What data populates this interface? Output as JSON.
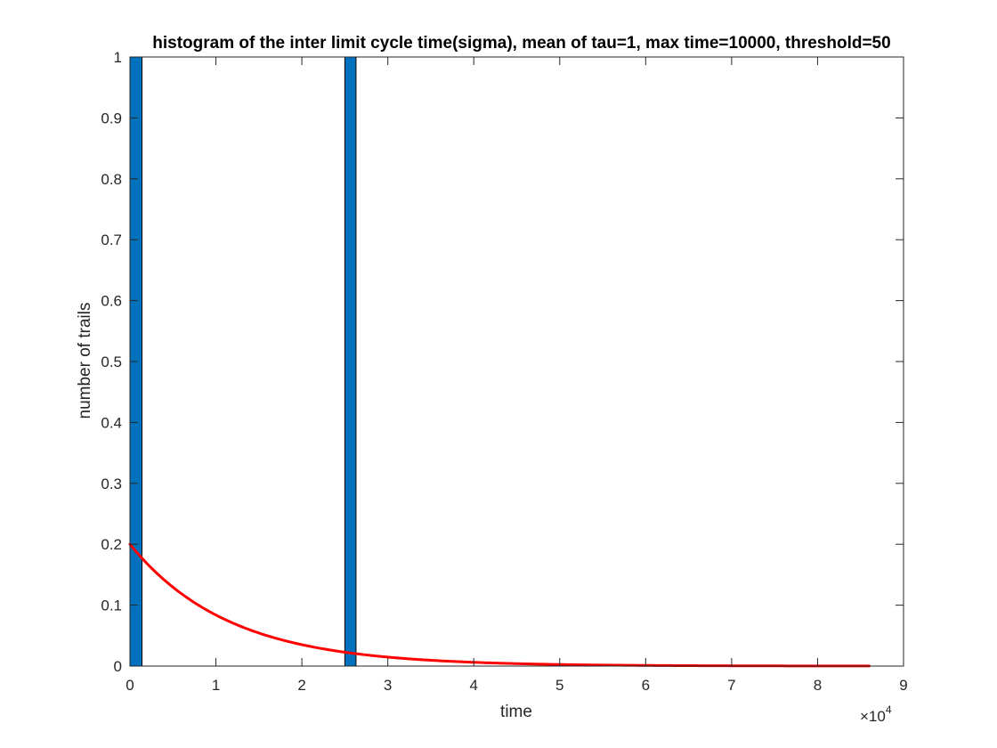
{
  "chart_data": {
    "type": "bar",
    "title": "histogram of the inter limit cycle time(sigma), mean of tau=1, max time=10000, threshold=50",
    "xlabel": "time",
    "ylabel": "number of trails",
    "x_multiplier_label": "×10",
    "x_multiplier_exponent": "4",
    "xlim": [
      0,
      90000
    ],
    "ylim": [
      0,
      1
    ],
    "xticks": [
      0,
      10000,
      20000,
      30000,
      40000,
      50000,
      60000,
      70000,
      80000,
      90000
    ],
    "xtick_labels": [
      "0",
      "1",
      "2",
      "3",
      "4",
      "5",
      "6",
      "7",
      "8",
      "9"
    ],
    "yticks": [
      0,
      0.1,
      0.2,
      0.3,
      0.4,
      0.5,
      0.6,
      0.7,
      0.8,
      0.9,
      1
    ],
    "ytick_labels": [
      "0",
      "0.1",
      "0.2",
      "0.3",
      "0.4",
      "0.5",
      "0.6",
      "0.7",
      "0.8",
      "0.9",
      "1"
    ],
    "grid": false,
    "bars": [
      {
        "x_start": 0,
        "x_end": 1400,
        "value": 1
      },
      {
        "x_start": 25000,
        "x_end": 26300,
        "value": 1
      }
    ],
    "curve": {
      "type": "line",
      "x_start": 0,
      "x_end": 86000,
      "function": "0.2*exp(-x/11500)"
    },
    "colors": {
      "bar_fill": "#0072BD",
      "bar_edge": "#000000",
      "curve": "#FF0000",
      "axis": "#262626"
    }
  }
}
